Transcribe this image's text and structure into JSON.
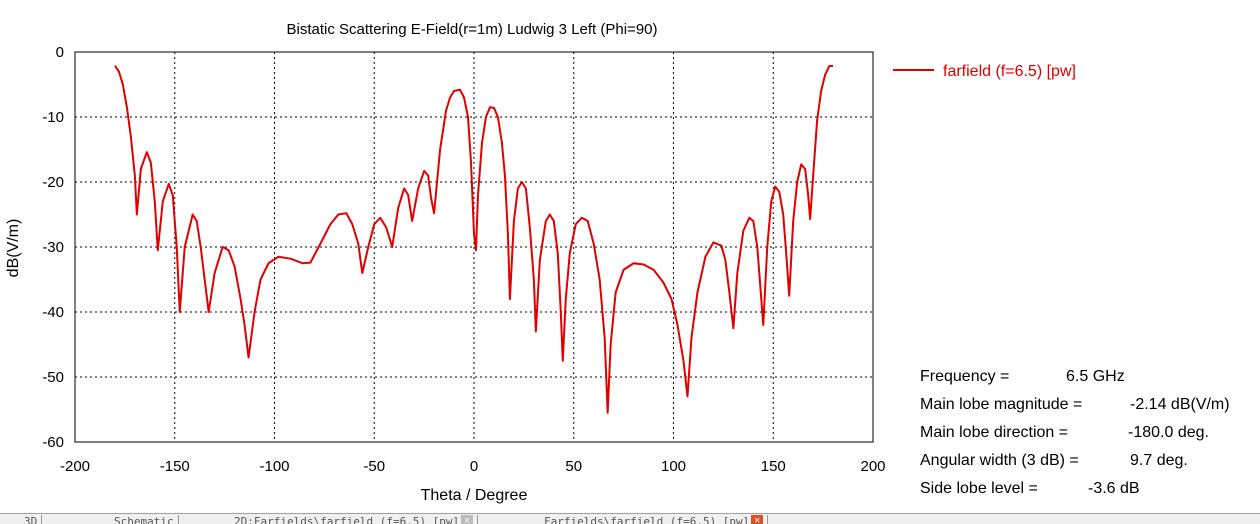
{
  "chart_data": {
    "type": "line",
    "title": "Bistatic Scattering E-Field(r=1m) Ludwig 3 Left (Phi=90)",
    "xlabel": "Theta / Degree",
    "ylabel": "dB(V/m)",
    "xlim": [
      -200,
      200
    ],
    "ylim": [
      -60,
      0
    ],
    "x_ticks": [
      "-200",
      "-150",
      "-100",
      "-50",
      "0",
      "50",
      "100",
      "150",
      "200"
    ],
    "y_ticks": [
      "0",
      "-10",
      "-20",
      "-30",
      "-40",
      "-50",
      "-60"
    ],
    "grid": true,
    "grid_style": "dotted",
    "legend_placement": "top-right, outside plot",
    "series": [
      {
        "name": "farfield (f=6.5) [pw]",
        "color": "#e00000",
        "points": [
          [
            -180,
            -2.1
          ],
          [
            -178,
            -3
          ],
          [
            -176,
            -5
          ],
          [
            -174,
            -8.5
          ],
          [
            -172,
            -13
          ],
          [
            -170,
            -19
          ],
          [
            -169,
            -25
          ],
          [
            -167,
            -18
          ],
          [
            -164,
            -15.4
          ],
          [
            -162,
            -17
          ],
          [
            -160,
            -23
          ],
          [
            -158.5,
            -30.5
          ],
          [
            -156,
            -23
          ],
          [
            -153,
            -20.3
          ],
          [
            -151,
            -22
          ],
          [
            -149,
            -30
          ],
          [
            -147.5,
            -40
          ],
          [
            -145,
            -30
          ],
          [
            -141,
            -25
          ],
          [
            -139,
            -26
          ],
          [
            -137,
            -30
          ],
          [
            -135,
            -35
          ],
          [
            -133,
            -40
          ],
          [
            -130,
            -34
          ],
          [
            -126,
            -30
          ],
          [
            -123,
            -30.5
          ],
          [
            -120,
            -33
          ],
          [
            -117,
            -38
          ],
          [
            -115,
            -42
          ],
          [
            -113,
            -47
          ],
          [
            -110,
            -40
          ],
          [
            -107,
            -35
          ],
          [
            -103,
            -32.5
          ],
          [
            -98,
            -31.5
          ],
          [
            -92,
            -31.8
          ],
          [
            -86,
            -32.5
          ],
          [
            -82,
            -32.4
          ],
          [
            -77,
            -29.5
          ],
          [
            -72,
            -26.5
          ],
          [
            -68,
            -25
          ],
          [
            -64,
            -24.8
          ],
          [
            -61,
            -26.5
          ],
          [
            -58,
            -29.5
          ],
          [
            -56,
            -34
          ],
          [
            -53,
            -30
          ],
          [
            -50,
            -26.5
          ],
          [
            -47,
            -25.5
          ],
          [
            -44,
            -27
          ],
          [
            -41,
            -30
          ],
          [
            -38,
            -24
          ],
          [
            -35,
            -21
          ],
          [
            -33,
            -22
          ],
          [
            -31,
            -26
          ],
          [
            -28,
            -21
          ],
          [
            -25,
            -18.3
          ],
          [
            -23,
            -19
          ],
          [
            -21.5,
            -22.5
          ],
          [
            -20,
            -24.8
          ],
          [
            -17,
            -15
          ],
          [
            -14,
            -9
          ],
          [
            -12,
            -7
          ],
          [
            -10,
            -6
          ],
          [
            -7,
            -5.8
          ],
          [
            -5,
            -7
          ],
          [
            -3,
            -10
          ],
          [
            -1.5,
            -17
          ],
          [
            0,
            -28
          ],
          [
            1,
            -30.5
          ],
          [
            2,
            -22
          ],
          [
            4,
            -14
          ],
          [
            6,
            -10
          ],
          [
            8,
            -8.5
          ],
          [
            10,
            -8.6
          ],
          [
            12,
            -10
          ],
          [
            14,
            -14
          ],
          [
            15.5,
            -19
          ],
          [
            17,
            -28
          ],
          [
            18,
            -38
          ],
          [
            20,
            -26
          ],
          [
            22,
            -21
          ],
          [
            24,
            -20
          ],
          [
            26,
            -21
          ],
          [
            28,
            -27
          ],
          [
            30,
            -35
          ],
          [
            31,
            -43
          ],
          [
            33,
            -32
          ],
          [
            36,
            -26
          ],
          [
            38,
            -25
          ],
          [
            40,
            -26
          ],
          [
            42,
            -31
          ],
          [
            43.5,
            -40
          ],
          [
            44.5,
            -47.5
          ],
          [
            46,
            -38
          ],
          [
            48,
            -31
          ],
          [
            51,
            -26.5
          ],
          [
            54,
            -25.5
          ],
          [
            57,
            -26
          ],
          [
            60,
            -29.5
          ],
          [
            63,
            -35
          ],
          [
            65.5,
            -44
          ],
          [
            67,
            -55.5
          ],
          [
            68.5,
            -45
          ],
          [
            71,
            -37
          ],
          [
            75,
            -33.5
          ],
          [
            80,
            -32.5
          ],
          [
            85,
            -32.7
          ],
          [
            90,
            -33.5
          ],
          [
            95,
            -35.5
          ],
          [
            99,
            -38
          ],
          [
            102,
            -42
          ],
          [
            105,
            -47.5
          ],
          [
            107,
            -53
          ],
          [
            109,
            -44
          ],
          [
            112,
            -37
          ],
          [
            116,
            -31.5
          ],
          [
            120,
            -29.3
          ],
          [
            124,
            -29.8
          ],
          [
            126,
            -32
          ],
          [
            128,
            -37
          ],
          [
            130,
            -42.5
          ],
          [
            132,
            -34
          ],
          [
            135,
            -27.5
          ],
          [
            138,
            -25.5
          ],
          [
            140,
            -26
          ],
          [
            142,
            -30
          ],
          [
            143.5,
            -36
          ],
          [
            145,
            -42
          ],
          [
            147,
            -30
          ],
          [
            149,
            -23
          ],
          [
            151,
            -20.7
          ],
          [
            153,
            -21.5
          ],
          [
            155,
            -25
          ],
          [
            156.5,
            -31
          ],
          [
            158,
            -37.5
          ],
          [
            160,
            -26
          ],
          [
            162,
            -20
          ],
          [
            164,
            -17.3
          ],
          [
            166,
            -18
          ],
          [
            167.5,
            -22
          ],
          [
            168.5,
            -25.7
          ],
          [
            170,
            -19
          ],
          [
            172,
            -10.5
          ],
          [
            174,
            -6
          ],
          [
            176,
            -3.5
          ],
          [
            178,
            -2.2
          ],
          [
            180,
            -2.14
          ]
        ]
      }
    ]
  },
  "info": [
    {
      "label": "Frequency =",
      "value": "6.5 GHz"
    },
    {
      "label": "Main lobe magnitude =",
      "value": "-2.14 dB(V/m)"
    },
    {
      "label": "Main lobe direction =",
      "value": "-180.0 deg."
    },
    {
      "label": "Angular width (3 dB) =",
      "value": "9.7 deg."
    },
    {
      "label": "Side lobe level =",
      "value": "-3.6 dB"
    }
  ],
  "tabs": [
    {
      "label": "3D",
      "active": false,
      "closable": false
    },
    {
      "label": "Schematic",
      "active": false,
      "closable": false
    },
    {
      "label": "2D:Farfields\\farfield (f=6.5) [pw]",
      "active": false,
      "closable": true
    },
    {
      "label": "Farfields\\farfield (f=6.5) [pw]",
      "active": true,
      "closable": true
    }
  ]
}
